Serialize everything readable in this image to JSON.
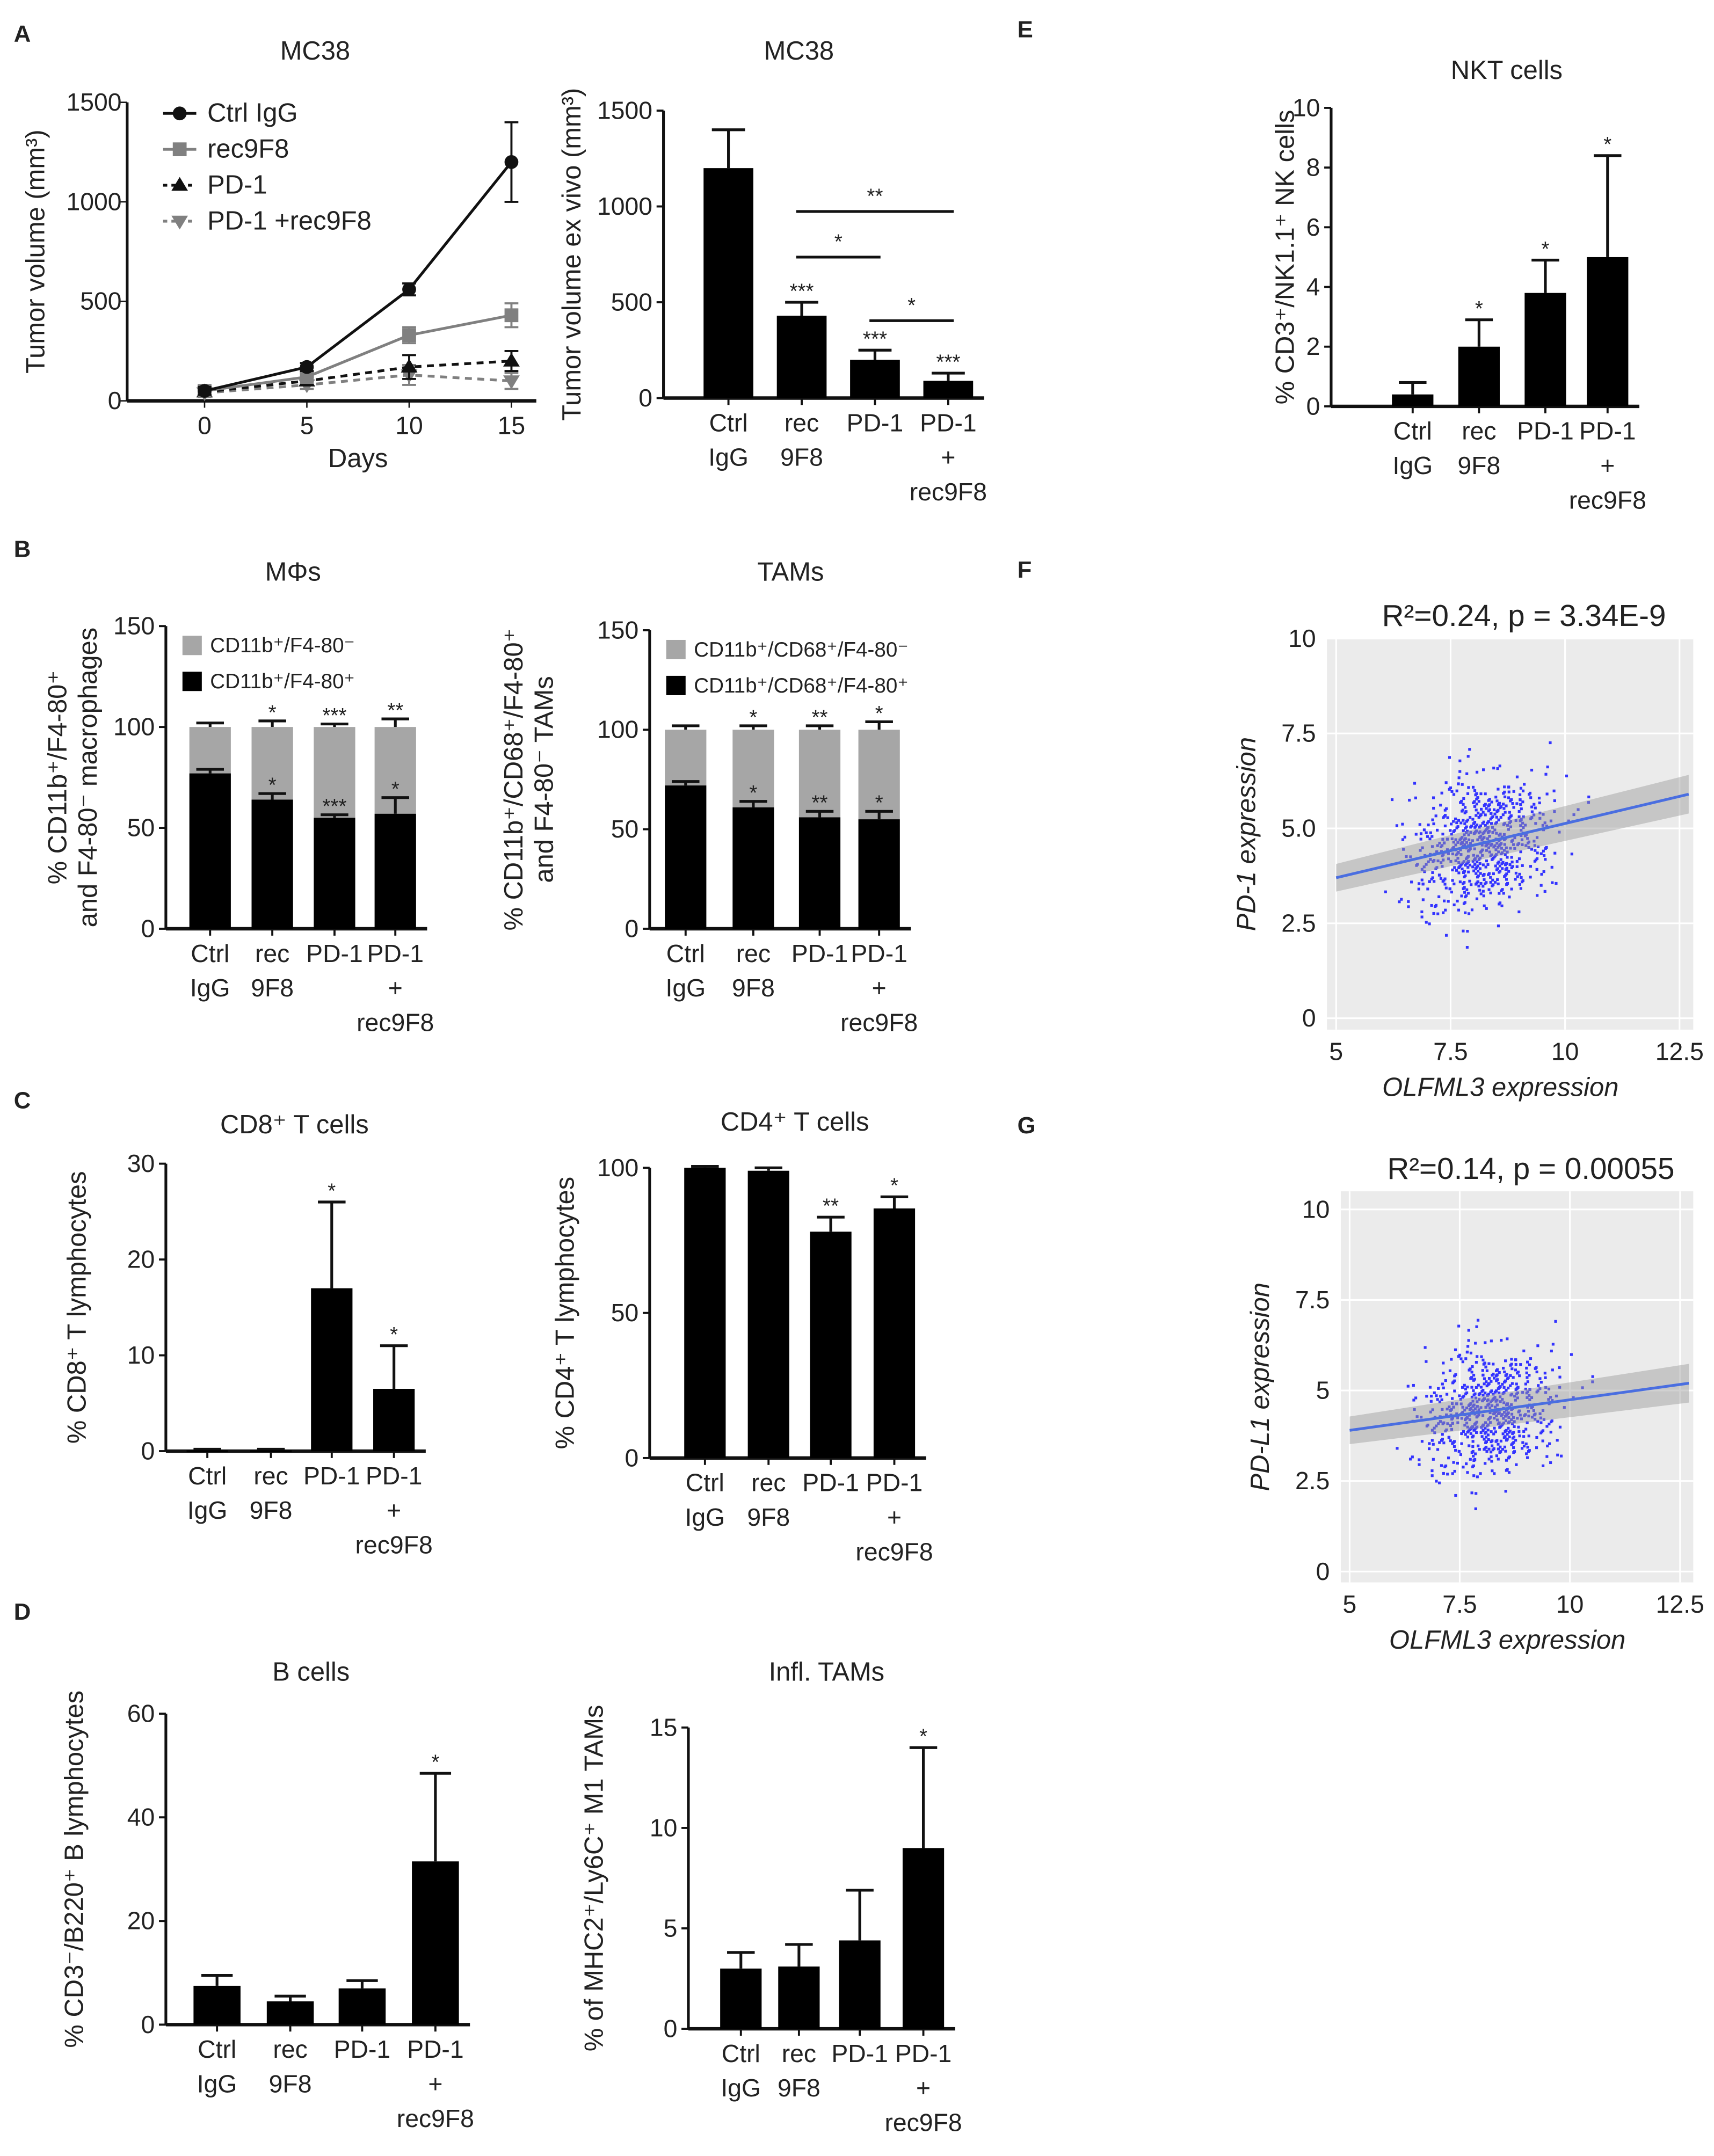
{
  "panel_letters": {
    "A": "A",
    "B": "B",
    "C": "C",
    "D": "D",
    "E": "E",
    "F": "F",
    "G": "G"
  },
  "chart_data": [
    {
      "id": "A_line",
      "type": "line",
      "title": "MC38",
      "xlabel": "Days",
      "ylabel": "Tumor volume (mm³)",
      "x": [
        0,
        5,
        10,
        15
      ],
      "xticks": [
        "0",
        "5",
        "10",
        "15"
      ],
      "yticks": [
        "0",
        "500",
        "1000",
        "1500"
      ],
      "ylim": [
        0,
        1500
      ],
      "legend_position": "top-left",
      "series": [
        {
          "name": "Ctrl IgG",
          "values": [
            50,
            170,
            560,
            1200
          ],
          "errors": [
            20,
            20,
            30,
            200
          ],
          "color": "#111111",
          "dashed": false,
          "marker": "circle"
        },
        {
          "name": "rec9F8",
          "values": [
            50,
            120,
            330,
            430
          ],
          "errors": [
            20,
            20,
            40,
            60
          ],
          "color": "#808080",
          "dashed": false,
          "marker": "square"
        },
        {
          "name": "PD-1",
          "values": [
            45,
            100,
            170,
            200
          ],
          "errors": [
            20,
            20,
            60,
            50
          ],
          "color": "#111111",
          "dashed": true,
          "marker": "triangle-up"
        },
        {
          "name": "PD-1 +rec9F8",
          "values": [
            40,
            80,
            130,
            100
          ],
          "errors": [
            20,
            20,
            50,
            40
          ],
          "color": "#808080",
          "dashed": true,
          "marker": "triangle-down"
        }
      ]
    },
    {
      "id": "A_bar",
      "type": "bar",
      "title": "MC38",
      "ylabel": "Tumor volume ex vivo (mm³)",
      "ylim": [
        0,
        1500
      ],
      "yticks": [
        "0",
        "500",
        "1000",
        "1500"
      ],
      "categories": [
        [
          "Ctrl",
          "IgG"
        ],
        [
          "rec",
          "9F8"
        ],
        [
          "PD-1"
        ],
        [
          "PD-1",
          "+",
          "rec9F8"
        ]
      ],
      "values": [
        1200,
        430,
        200,
        90
      ],
      "errors": [
        200,
        70,
        50,
        40
      ],
      "sig": [
        "",
        "***",
        "***",
        "***"
      ],
      "brackets": [
        {
          "from": 1,
          "to": 3,
          "label": "**"
        },
        {
          "from": 1,
          "to": 2,
          "label": "*"
        },
        {
          "from": 2,
          "to": 3,
          "label": "*"
        }
      ]
    },
    {
      "id": "B_mphi",
      "type": "stacked-bar",
      "title": "MΦs",
      "ylabel": [
        "% CD11b⁺/F4-80⁺",
        "and F4-80⁻ macrophages"
      ],
      "ylim": [
        0,
        150
      ],
      "yticks": [
        "0",
        "50",
        "100",
        "150"
      ],
      "categories": [
        [
          "Ctrl",
          "IgG"
        ],
        [
          "rec",
          "9F8"
        ],
        [
          "PD-1"
        ],
        [
          "PD-1",
          "+",
          "rec9F8"
        ]
      ],
      "legend": [
        "CD11b⁺/F4-80⁻",
        "CD11b⁺/F4-80⁺"
      ],
      "bottom": [
        77,
        64,
        55,
        57
      ],
      "bottom_errors": [
        2,
        3,
        1.5,
        8
      ],
      "bottom_sig": [
        "",
        "*",
        "***",
        "*"
      ],
      "total": [
        100,
        100,
        100,
        100
      ],
      "total_errors": [
        2,
        3,
        1.5,
        4
      ],
      "total_sig": [
        "",
        "*",
        "***",
        "**"
      ]
    },
    {
      "id": "B_tams",
      "type": "stacked-bar",
      "title": "TAMs",
      "ylabel": [
        "% CD11b⁺/CD68⁺/F4-80⁺",
        "and F4-80⁻ TAMs"
      ],
      "ylim": [
        0,
        150
      ],
      "yticks": [
        "0",
        "50",
        "100",
        "150"
      ],
      "categories": [
        [
          "Ctrl",
          "IgG"
        ],
        [
          "rec",
          "9F8"
        ],
        [
          "PD-1"
        ],
        [
          "PD-1",
          "+",
          "rec9F8"
        ]
      ],
      "legend": [
        "CD11b⁺/CD68⁺/F4-80⁻",
        "CD11b⁺/CD68⁺/F4-80⁺"
      ],
      "bottom": [
        72,
        61,
        56,
        55
      ],
      "bottom_errors": [
        2,
        3,
        3,
        4
      ],
      "bottom_sig": [
        "",
        "*",
        "**",
        "*"
      ],
      "total": [
        100,
        100,
        100,
        100
      ],
      "total_errors": [
        2,
        2,
        2,
        4
      ],
      "total_sig": [
        "",
        "*",
        "**",
        "*"
      ]
    },
    {
      "id": "C_cd8",
      "type": "bar",
      "title": "CD8⁺ T cells",
      "ylabel": [
        "% CD8⁺ T lymphocytes"
      ],
      "ylim": [
        0,
        30
      ],
      "yticks": [
        "0",
        "10",
        "20",
        "30"
      ],
      "categories": [
        [
          "Ctrl",
          "IgG"
        ],
        [
          "rec",
          "9F8"
        ],
        [
          "PD-1"
        ],
        [
          "PD-1",
          "+",
          "rec9F8"
        ]
      ],
      "values": [
        0.1,
        0.1,
        17,
        6.5
      ],
      "errors": [
        0.1,
        0.1,
        9,
        4.5
      ],
      "sig": [
        "",
        "",
        "*",
        "*"
      ]
    },
    {
      "id": "C_cd4",
      "type": "bar",
      "title": "CD4⁺ T cells",
      "ylabel": [
        "% CD4⁺ T lymphocytes"
      ],
      "ylim": [
        0,
        100
      ],
      "yticks": [
        "0",
        "50",
        "100"
      ],
      "categories": [
        [
          "Ctrl",
          "IgG"
        ],
        [
          "rec",
          "9F8"
        ],
        [
          "PD-1"
        ],
        [
          "PD-1",
          "+",
          "rec9F8"
        ]
      ],
      "values": [
        100,
        99,
        78,
        86
      ],
      "errors": [
        0.5,
        1,
        5,
        4
      ],
      "sig": [
        "",
        "",
        "**",
        "*"
      ]
    },
    {
      "id": "D_b",
      "type": "bar",
      "title": "B cells",
      "ylabel": [
        "% CD3⁻/B220⁺ B lymphocytes"
      ],
      "ylim": [
        0,
        60
      ],
      "yticks": [
        "0",
        "20",
        "40",
        "60"
      ],
      "categories": [
        [
          "Ctrl",
          "IgG"
        ],
        [
          "rec",
          "9F8"
        ],
        [
          "PD-1"
        ],
        [
          "PD-1",
          "+",
          "rec9F8"
        ]
      ],
      "values": [
        7.5,
        4.5,
        7,
        31.5
      ],
      "errors": [
        2,
        1,
        1.5,
        17
      ],
      "sig": [
        "",
        "",
        "",
        "*"
      ]
    },
    {
      "id": "D_infl",
      "type": "bar",
      "title": "Infl. TAMs",
      "ylabel": [
        "% of MHC2⁺/Ly6C⁺ M1 TAMs"
      ],
      "ylim": [
        0,
        15
      ],
      "yticks": [
        "0",
        "5",
        "10",
        "15"
      ],
      "categories": [
        [
          "Ctrl",
          "IgG"
        ],
        [
          "rec",
          "9F8"
        ],
        [
          "PD-1"
        ],
        [
          "PD-1",
          "+",
          "rec9F8"
        ]
      ],
      "values": [
        3,
        3.1,
        4.4,
        9
      ],
      "errors": [
        0.8,
        1.1,
        2.5,
        5
      ],
      "sig": [
        "",
        "",
        "",
        "*"
      ]
    },
    {
      "id": "E_nkt",
      "type": "bar",
      "title": "NKT cells",
      "ylabel": [
        "% CD3⁺/NK1.1⁺ NK cells"
      ],
      "ylim": [
        0,
        10
      ],
      "yticks": [
        "0",
        "2",
        "4",
        "6",
        "8",
        "10"
      ],
      "categories": [
        [
          "Ctrl",
          "IgG"
        ],
        [
          "rec",
          "9F8"
        ],
        [
          "PD-1"
        ],
        [
          "PD-1",
          "+",
          "rec9F8"
        ]
      ],
      "values": [
        0.4,
        2,
        3.8,
        5
      ],
      "errors": [
        0.4,
        0.9,
        1.1,
        3.4
      ],
      "sig": [
        "",
        "*",
        "*",
        "*"
      ]
    },
    {
      "id": "F_scatter",
      "type": "scatter",
      "title": "R²=0.24,  p = 3.34E-9",
      "xlabel": "OLFML3 expression",
      "ylabel": "PD-1 expression",
      "xlim": [
        4.8,
        12.8
      ],
      "ylim": [
        -0.3,
        10
      ],
      "xticks": [
        "5",
        "7.5",
        "10",
        "12.5"
      ],
      "yticks": [
        "0",
        "2.5",
        "5.0",
        "7.5",
        "10"
      ],
      "trend": {
        "x": [
          5,
          12.7
        ],
        "y": [
          3.7,
          5.9
        ]
      },
      "center": [
        8.2,
        4.6
      ],
      "spread": [
        1.3,
        1.5
      ],
      "n": 700,
      "point_color": "#3333ff"
    },
    {
      "id": "G_scatter",
      "type": "scatter",
      "title": "R²=0.14,  p = 0.00055",
      "xlabel": "OLFML3 expression",
      "ylabel": "PD-L1 expression",
      "xlim": [
        4.8,
        12.8
      ],
      "ylim": [
        -0.3,
        10.5
      ],
      "xticks": [
        "5",
        "7.5",
        "10",
        "12.5"
      ],
      "yticks": [
        "0",
        "2.5",
        "5",
        "7.5",
        "10"
      ],
      "trend": {
        "x": [
          5,
          12.7
        ],
        "y": [
          3.9,
          5.2
        ]
      },
      "center": [
        8.2,
        4.5
      ],
      "spread": [
        1.3,
        1.5
      ],
      "n": 650,
      "point_color": "#3333ff"
    }
  ]
}
